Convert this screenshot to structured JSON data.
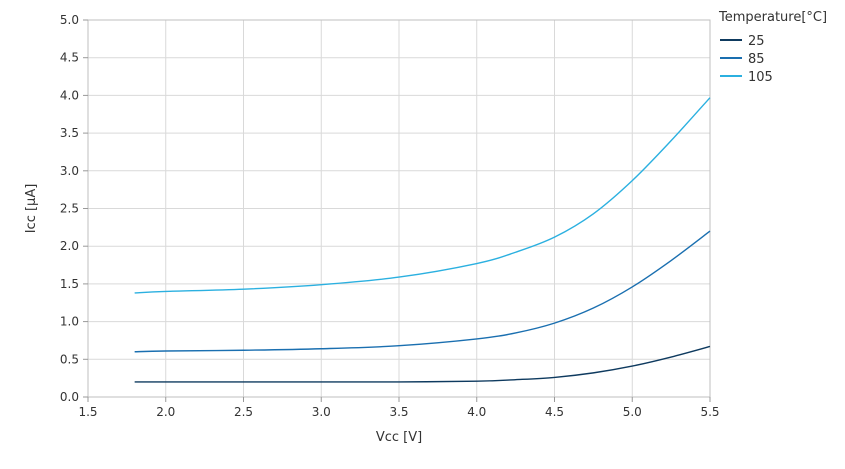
{
  "chart_data": {
    "type": "line",
    "xlabel": "Vcc [V]",
    "ylabel": "Icc [µA]",
    "xlim": [
      1.5,
      5.5
    ],
    "ylim": [
      0.0,
      5.0
    ],
    "xticks": [
      "1.5",
      "2.0",
      "2.5",
      "3.0",
      "3.5",
      "4.0",
      "4.5",
      "5.0",
      "5.5"
    ],
    "yticks": [
      "0.0",
      "0.5",
      "1.0",
      "1.5",
      "2.0",
      "2.5",
      "3.0",
      "3.5",
      "4.0",
      "4.5",
      "5.0"
    ],
    "grid": true,
    "legend_title": "Temperature[°C]",
    "legend_position": "top-right",
    "series": [
      {
        "name": "25",
        "color": "#0e3a5f",
        "x": [
          1.8,
          2.0,
          2.5,
          3.0,
          3.5,
          4.0,
          4.25,
          4.5,
          4.75,
          5.0,
          5.25,
          5.5
        ],
        "y": [
          0.2,
          0.2,
          0.2,
          0.2,
          0.2,
          0.21,
          0.23,
          0.26,
          0.32,
          0.41,
          0.53,
          0.67
        ]
      },
      {
        "name": "85",
        "color": "#1a6fb0",
        "x": [
          1.8,
          2.0,
          2.5,
          3.0,
          3.5,
          4.0,
          4.25,
          4.5,
          4.75,
          5.0,
          5.25,
          5.5
        ],
        "y": [
          0.6,
          0.61,
          0.62,
          0.64,
          0.68,
          0.77,
          0.85,
          0.98,
          1.18,
          1.46,
          1.81,
          2.2
        ]
      },
      {
        "name": "105",
        "color": "#2bb0e0",
        "x": [
          1.8,
          2.0,
          2.5,
          3.0,
          3.5,
          4.0,
          4.25,
          4.5,
          4.75,
          5.0,
          5.25,
          5.5
        ],
        "y": [
          1.38,
          1.4,
          1.43,
          1.49,
          1.59,
          1.77,
          1.92,
          2.12,
          2.43,
          2.87,
          3.4,
          3.97
        ]
      }
    ]
  }
}
